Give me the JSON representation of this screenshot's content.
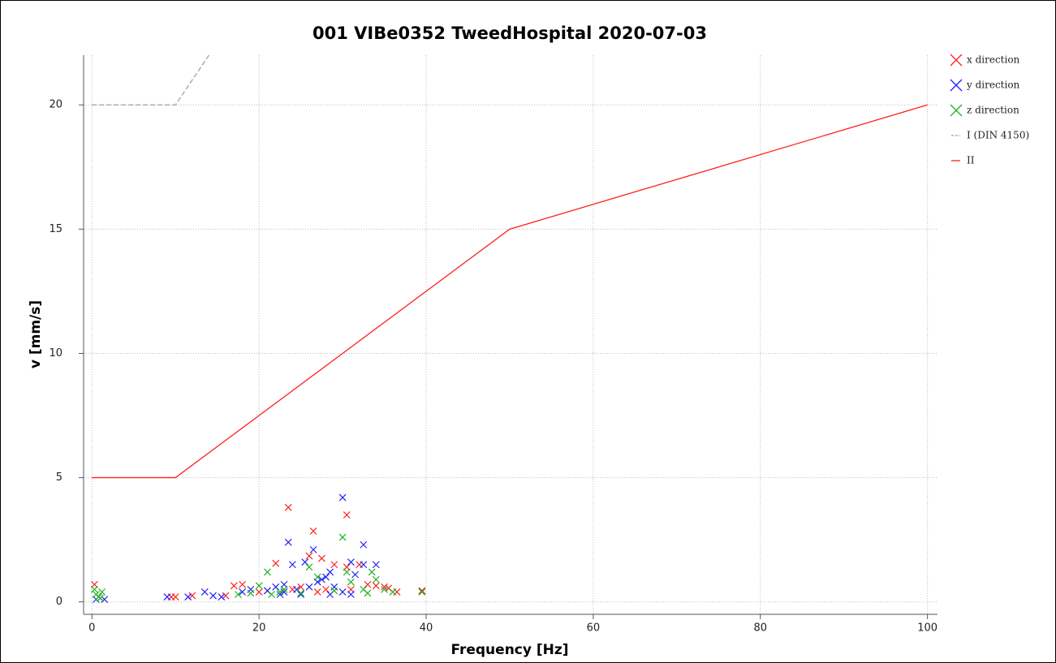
{
  "chart_data": {
    "type": "scatter",
    "title": "001 VIBe0352 TweedHospital 2020-07-03",
    "x_label": "Frequency [Hz]",
    "y_label": "v [mm/s]",
    "xlim": [
      -1,
      101.2
    ],
    "ylim": [
      -0.5,
      22
    ],
    "xticks": [
      0,
      20,
      40,
      60,
      80,
      100
    ],
    "yticks": [
      0,
      5,
      10,
      15,
      20
    ],
    "grid": true,
    "legend": "right",
    "series": [
      {
        "name": "x direction",
        "type": "scatter",
        "color": "#ff2020",
        "x": [
          0.3,
          9.5,
          10,
          12,
          16,
          17,
          18,
          22,
          23.5,
          24,
          25,
          26,
          26.5,
          27.5,
          29,
          30.5,
          30.5,
          32,
          33,
          34,
          35,
          36.5,
          39.5,
          20,
          21,
          28,
          27,
          31,
          35.5
        ],
        "values": [
          0.7,
          0.2,
          0.2,
          0.25,
          0.25,
          0.65,
          0.7,
          1.55,
          3.8,
          0.5,
          0.6,
          1.85,
          2.85,
          1.75,
          1.5,
          3.5,
          1.4,
          1.5,
          0.7,
          0.65,
          0.6,
          0.4,
          0.45,
          0.4,
          0.45,
          0.5,
          0.4,
          0.5,
          0.55
        ]
      },
      {
        "name": "y direction",
        "type": "scatter",
        "color": "#2020ff",
        "x": [
          0.5,
          1.5,
          9,
          11.5,
          13.5,
          14.5,
          15.5,
          18,
          19,
          21,
          22,
          23.5,
          24,
          25.5,
          26.5,
          28,
          28.5,
          30,
          31,
          32.5,
          32.5,
          34,
          31.5,
          23,
          24.5,
          25,
          27,
          29,
          30,
          26,
          27.5,
          22.5,
          23,
          28.5,
          31
        ],
        "values": [
          0.1,
          0.1,
          0.2,
          0.2,
          0.4,
          0.25,
          0.2,
          0.4,
          0.5,
          0.45,
          0.6,
          2.4,
          1.5,
          1.6,
          2.1,
          1.0,
          1.2,
          4.2,
          1.6,
          2.3,
          1.5,
          1.5,
          1.1,
          0.7,
          0.5,
          0.3,
          0.8,
          0.6,
          0.4,
          0.6,
          0.9,
          0.3,
          0.4,
          0.3,
          0.3
        ]
      },
      {
        "name": "z direction",
        "type": "scatter",
        "color": "#20b020",
        "x": [
          0.3,
          0.5,
          0.8,
          1,
          1.2,
          17.5,
          19,
          20,
          21,
          22.5,
          23,
          26,
          27,
          30,
          30.5,
          31,
          32.5,
          33.5,
          34,
          35,
          36,
          39.5,
          21.5,
          25,
          29,
          33
        ],
        "values": [
          0.5,
          0.3,
          0.2,
          0.15,
          0.4,
          0.3,
          0.35,
          0.65,
          1.2,
          0.4,
          0.5,
          1.4,
          1.0,
          2.6,
          1.2,
          0.8,
          0.5,
          1.2,
          0.9,
          0.5,
          0.4,
          0.4,
          0.3,
          0.35,
          0.45,
          0.35
        ]
      },
      {
        "name": "I (DIN 4150)",
        "type": "line",
        "line_style": "dashed",
        "color": "#a0a0a0",
        "x": [
          0,
          10,
          50
        ],
        "values": [
          20,
          20,
          40
        ]
      },
      {
        "name": "II",
        "type": "line",
        "line_style": "solid",
        "color": "#ff2020",
        "x": [
          0,
          10,
          50,
          100
        ],
        "values": [
          5,
          5,
          15,
          20
        ]
      }
    ]
  }
}
